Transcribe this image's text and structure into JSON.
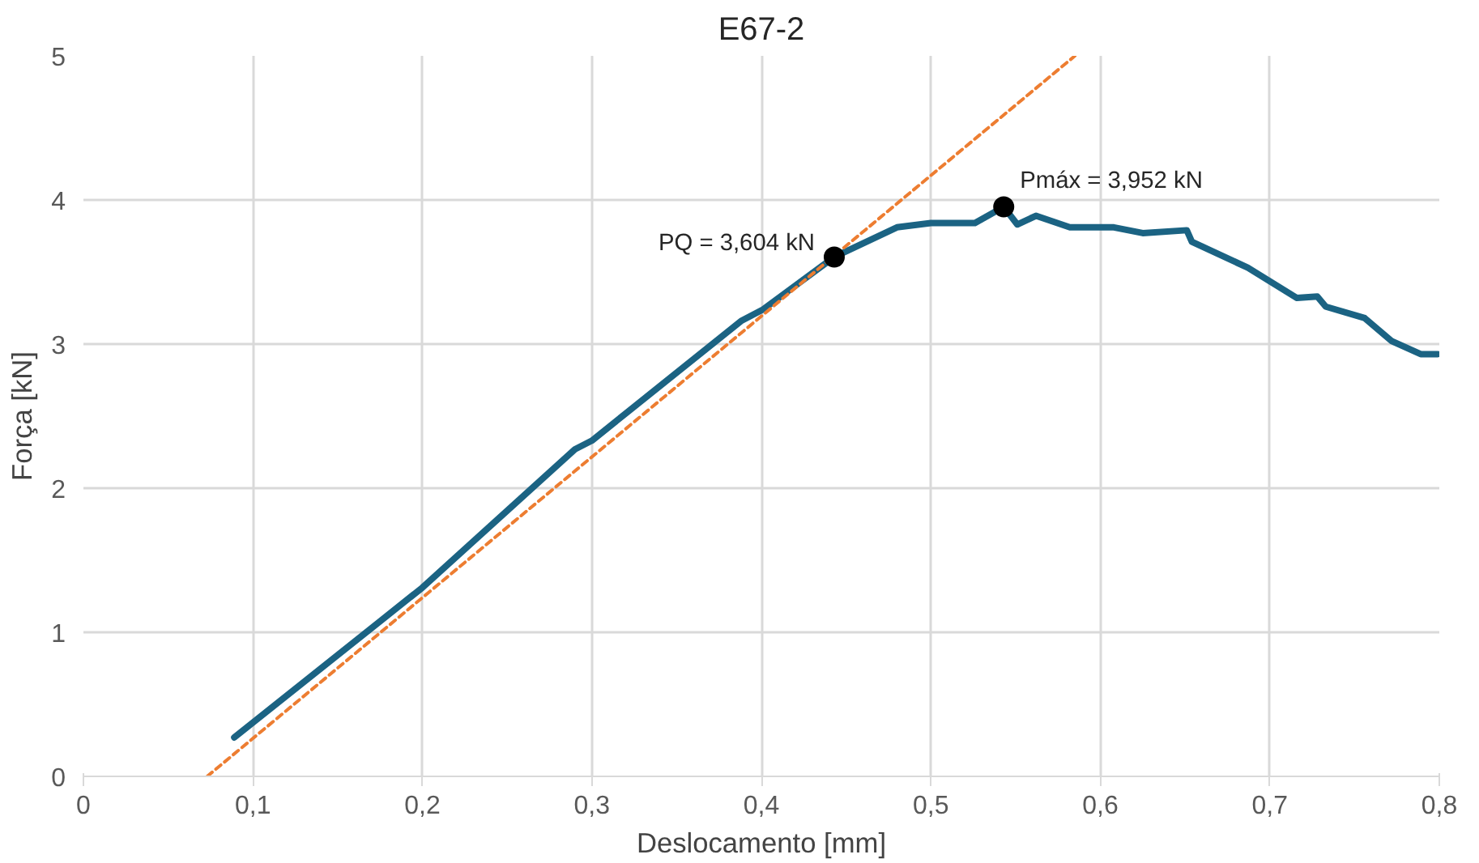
{
  "chart_data": {
    "type": "line",
    "title": "E67-2",
    "xlabel": "Deslocamento [mm]",
    "ylabel": "Força [kN]",
    "xlim": [
      0,
      0.8
    ],
    "ylim": [
      0,
      5
    ],
    "xticks": [
      0,
      {
        "value": 0.1,
        "label": "0,1"
      },
      {
        "value": 0.2,
        "label": "0,2"
      },
      {
        "value": 0.3,
        "label": "0,3"
      },
      {
        "value": 0.4,
        "label": "0,4"
      },
      {
        "value": 0.5,
        "label": "0,5"
      },
      {
        "value": 0.6,
        "label": "0,6"
      },
      {
        "value": 0.7,
        "label": "0,7"
      },
      {
        "value": 0.8,
        "label": "0,8"
      }
    ],
    "yticks": [
      0,
      1,
      2,
      3,
      4,
      5
    ],
    "grid": true,
    "series": [
      {
        "color": "#1b6383",
        "line_style": "solid",
        "x": [
          0.089,
          0.2,
          0.29,
          0.3,
          0.388,
          0.401,
          0.443,
          0.48,
          0.5,
          0.526,
          0.543,
          0.551,
          0.562,
          0.582,
          0.608,
          0.625,
          0.651,
          0.654,
          0.687,
          0.716,
          0.728,
          0.733,
          0.756,
          0.772,
          0.789,
          0.799
        ],
        "values": [
          0.27,
          1.31,
          2.27,
          2.33,
          3.16,
          3.24,
          3.604,
          3.81,
          3.84,
          3.84,
          3.952,
          3.83,
          3.89,
          3.81,
          3.81,
          3.77,
          3.79,
          3.71,
          3.53,
          3.32,
          3.33,
          3.26,
          3.18,
          3.02,
          2.93,
          2.93
        ]
      },
      {
        "type": "line",
        "color": "#ed7d31",
        "line_style": "dashed",
        "x": [
          0.073,
          0.585
        ],
        "values": [
          0,
          5
        ]
      },
      {
        "type": "scatter",
        "color": "#000000",
        "marker": "circle",
        "x": [
          0.443,
          0.543
        ],
        "values": [
          3.604,
          3.952
        ]
      }
    ],
    "annotations": [
      {
        "text": "PQ = 3,604 kN",
        "x": 0.443,
        "y": 3.604
      },
      {
        "text": "Pmáx = 3,952 kN",
        "x": 0.543,
        "y": 3.952
      }
    ]
  }
}
